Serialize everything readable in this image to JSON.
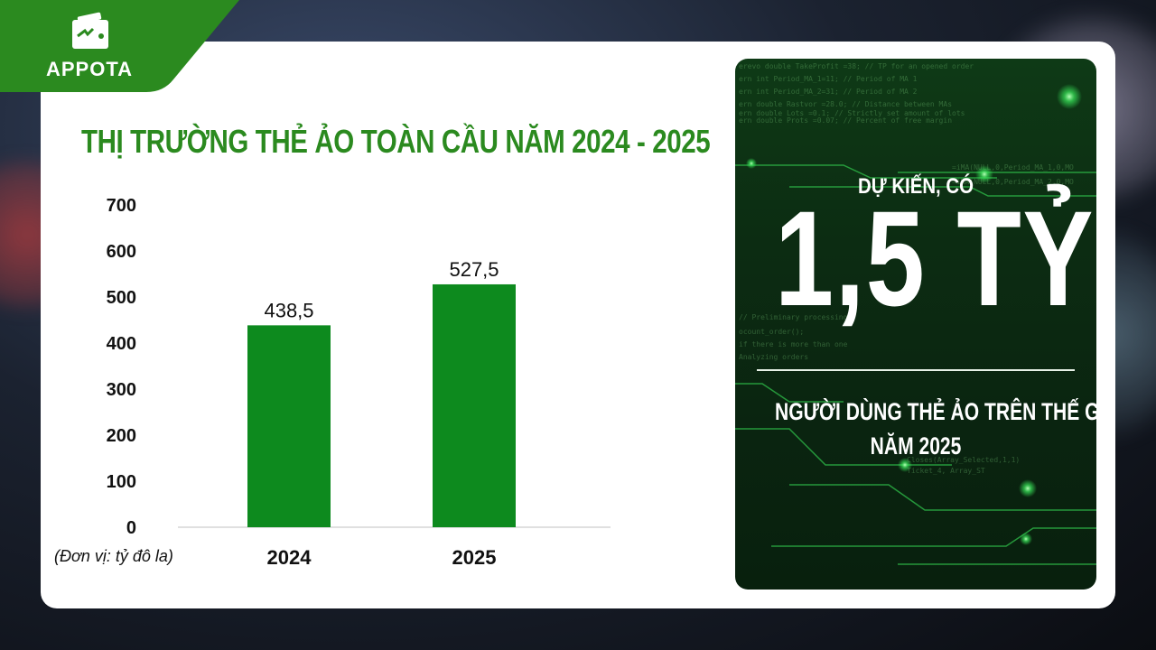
{
  "brand": {
    "name": "APPOTA",
    "color": "#2b8a1f"
  },
  "title": "THỊ TRƯỜNG THẺ ẢO TOÀN CẦU NĂM 2024 - 2025",
  "unit_note": "(Đơn vị: tỷ đô la)",
  "chart_data": {
    "type": "bar",
    "title": "THỊ TRƯỜNG THẺ ẢO TOÀN CẦU NĂM 2024 - 2025",
    "categories": [
      "2024",
      "2025"
    ],
    "values": [
      438.5,
      527.5
    ],
    "data_labels": [
      "438,5",
      "527,5"
    ],
    "yticks": [
      "0",
      "100",
      "200",
      "300",
      "400",
      "500",
      "600",
      "700"
    ],
    "ylim": [
      0,
      700
    ],
    "ylabel": "",
    "xlabel": "",
    "grid": false,
    "legend": "none",
    "bar_color": "#0d8a1e"
  },
  "panel": {
    "top_text": "DỰ KIẾN, CÓ",
    "big_text": "1,5 TỶ",
    "sub_line_1": "NGƯỜI DÙNG THẺ ẢO TRÊN THẾ GIỚI",
    "sub_line_2": "NĂM 2025",
    "accent": "#39e85a"
  }
}
